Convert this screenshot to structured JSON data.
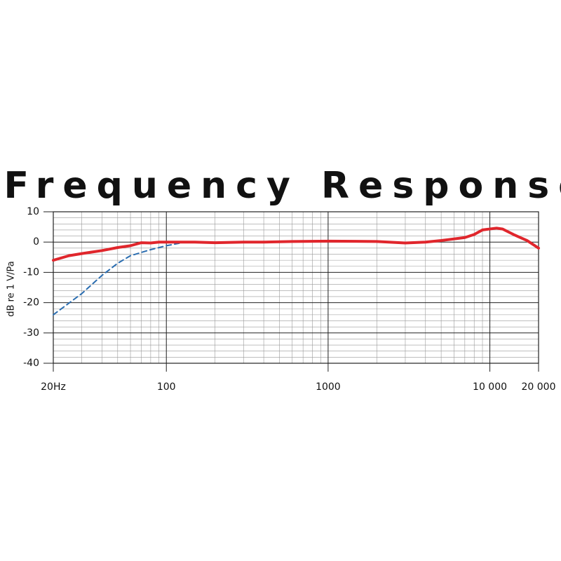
{
  "chart_data": {
    "type": "line",
    "title": "Frequency Response",
    "y_label": "dB re 1 V/Pa",
    "xscale": "log",
    "xlim": [
      20,
      20000
    ],
    "ylim": [
      -40,
      10
    ],
    "xticks": [
      {
        "value": 20,
        "label": "20Hz"
      },
      100,
      1000,
      {
        "value": 10000,
        "label": "10 000"
      },
      {
        "value": 20000,
        "label": "20 000"
      }
    ],
    "yticks": [
      10,
      0,
      -10,
      -20,
      -30,
      -40
    ],
    "grid": true,
    "minor_grid": true,
    "series": [
      {
        "color": "#e0262c",
        "dash": false,
        "x": [
          20,
          25,
          30,
          40,
          50,
          60,
          70,
          80,
          90,
          100,
          150,
          200,
          300,
          400,
          600,
          1000,
          2000,
          3000,
          4000,
          5000,
          7000,
          8000,
          9000,
          11000,
          12000,
          14000,
          17000,
          20000
        ],
        "values": [
          -6,
          -4.5,
          -3.8,
          -2.8,
          -1.8,
          -1.2,
          -0.2,
          -0.3,
          0,
          0,
          0,
          -0.2,
          0,
          0,
          0.2,
          0.3,
          0.2,
          -0.3,
          0,
          0.5,
          1.5,
          2.5,
          4,
          4.6,
          4.3,
          2.5,
          0.5,
          -2
        ]
      },
      {
        "color": "#2a6db0",
        "dash": true,
        "x": [
          20,
          30,
          40,
          50,
          60,
          80,
          100,
          120
        ],
        "values": [
          -24,
          -17,
          -11,
          -7,
          -4.5,
          -2.5,
          -1.2,
          -0.4
        ]
      }
    ]
  }
}
